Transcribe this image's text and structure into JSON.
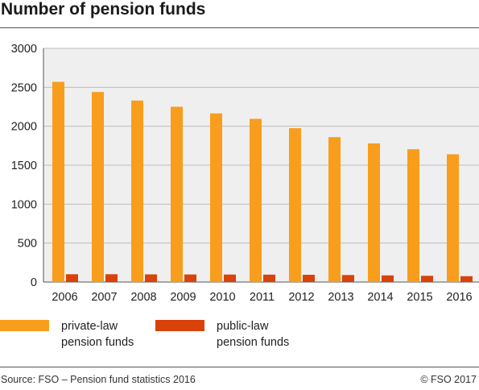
{
  "header": {
    "title": "Number of pension funds"
  },
  "chart_data": {
    "type": "bar",
    "title": "Number of pension funds",
    "xlabel": "",
    "ylabel": "",
    "categories": [
      "2006",
      "2007",
      "2008",
      "2009",
      "2010",
      "2011",
      "2012",
      "2013",
      "2014",
      "2015",
      "2016"
    ],
    "series": [
      {
        "name": "private-law pension funds",
        "color": "#F99D1C",
        "values": [
          2570,
          2440,
          2330,
          2250,
          2165,
          2095,
          1975,
          1860,
          1780,
          1705,
          1640
        ]
      },
      {
        "name": "public-law pension funds",
        "color": "#D9420B",
        "values": [
          100,
          100,
          98,
          97,
          96,
          95,
          93,
          90,
          85,
          80,
          75
        ]
      }
    ],
    "ylim": [
      0,
      3000
    ],
    "yticks": [
      0,
      500,
      1000,
      1500,
      2000,
      2500,
      3000
    ],
    "grid": true,
    "legend_position": "bottom"
  },
  "legend": {
    "items": [
      {
        "label_line1": "private-law",
        "label_line2": "pension funds",
        "color": "#F99D1C"
      },
      {
        "label_line1": "public-law",
        "label_line2": "pension funds",
        "color": "#D9420B"
      }
    ]
  },
  "footer": {
    "source": "Source: FSO – Pension fund statistics 2016",
    "copyright": "© FSO 2017"
  }
}
